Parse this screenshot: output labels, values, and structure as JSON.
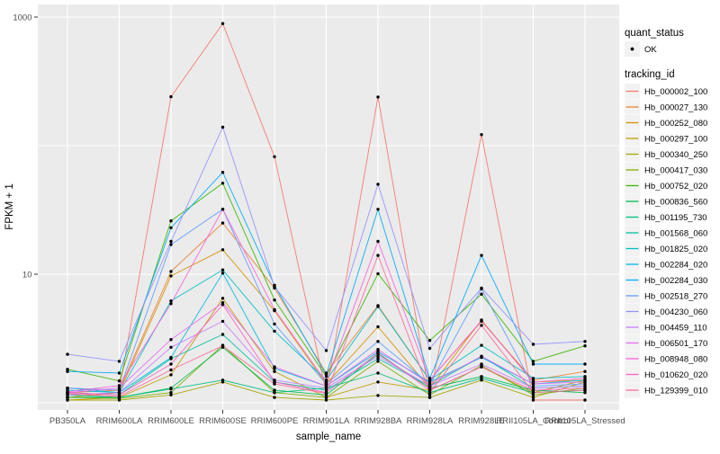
{
  "figure": {
    "panel_background": "#EBEBEB",
    "gridline_color": "#FFFFFF",
    "tick_text_color": "#4D4D4D",
    "point_color": "#000000",
    "legend_key_background": "#F2F2F2"
  },
  "chart_data": {
    "type": "line",
    "title": "",
    "xlabel": "sample_name",
    "ylabel": "FPKM + 1",
    "y_scale": "log10",
    "ylim_log10": [
      -0.05,
      3.1
    ],
    "grid": true,
    "legend_position": "right",
    "y_ticks": [
      {
        "value": 1000,
        "label": "1000"
      },
      {
        "value": 10,
        "label": "10"
      }
    ],
    "y_gridlines": [
      1,
      10,
      100,
      1000
    ],
    "categories": [
      "PB350LA",
      "RRIM600LA",
      "RRIM600LE",
      "RRIM600SE",
      "RRIM600PE",
      "RRIM901LA",
      "RRIM928BA",
      "RRIM928LA",
      "RRIM928LE",
      "RRII105LA_Control",
      "RRII105LA_Stressed"
    ],
    "series": [
      {
        "name": "Hb_000002_100",
        "color": "#F8766D",
        "values": [
          1.3,
          1.25,
          240,
          890,
          82,
          1.2,
          239,
          1.1,
          122,
          1.05,
          1.05
        ]
      },
      {
        "name": "Hb_000027_130",
        "color": "#EA8331",
        "values": [
          1.2,
          1.25,
          10.5,
          25,
          7.8,
          1.7,
          5.7,
          1.5,
          4.3,
          1.5,
          1.75
        ]
      },
      {
        "name": "Hb_000252_080",
        "color": "#D89000",
        "values": [
          1.1,
          1.2,
          9.7,
          15.5,
          5.2,
          1.4,
          3.9,
          1.3,
          4.4,
          1.45,
          1.5
        ]
      },
      {
        "name": "Hb_000297_100",
        "color": "#C09B00",
        "values": [
          1.05,
          1.1,
          1.65,
          6.5,
          1.75,
          1.1,
          1.45,
          1.25,
          1.9,
          1.2,
          1.5
        ]
      },
      {
        "name": "Hb_000340_250",
        "color": "#A3A500",
        "values": [
          1.05,
          1.05,
          1.15,
          1.45,
          1.1,
          1.05,
          1.14,
          1.1,
          1.5,
          1.1,
          1.45
        ]
      },
      {
        "name": "Hb_000417_030",
        "color": "#7CAE00",
        "values": [
          1.1,
          1.08,
          1.2,
          2.8,
          1.2,
          1.1,
          2.1,
          1.15,
          1.95,
          1.15,
          1.3
        ]
      },
      {
        "name": "Hb_000752_020",
        "color": "#39B600",
        "values": [
          1.82,
          1.48,
          26,
          51,
          6.3,
          1.6,
          10.1,
          3.05,
          7.0,
          2.1,
          2.77
        ]
      },
      {
        "name": "Hb_000836_560",
        "color": "#00BB4E",
        "values": [
          1.1,
          1.1,
          1.3,
          2.7,
          1.25,
          1.15,
          2.4,
          1.3,
          1.6,
          1.25,
          1.2
        ]
      },
      {
        "name": "Hb_001195_730",
        "color": "#00BF7D",
        "values": [
          1.15,
          1.1,
          1.28,
          1.5,
          1.2,
          1.3,
          1.7,
          1.2,
          1.55,
          1.2,
          1.25
        ]
      },
      {
        "name": "Hb_001568_060",
        "color": "#00C1A3",
        "values": [
          1.2,
          1.15,
          2.2,
          3.4,
          1.45,
          1.25,
          2.2,
          1.35,
          2.3,
          1.3,
          1.35
        ]
      },
      {
        "name": "Hb_001825_020",
        "color": "#00BFC4",
        "values": [
          1.3,
          1.2,
          6.2,
          10.8,
          3.6,
          1.5,
          5.6,
          1.5,
          2.8,
          1.55,
          1.6
        ]
      },
      {
        "name": "Hb_002284_020",
        "color": "#00B8E7",
        "values": [
          1.25,
          1.2,
          2.25,
          10.2,
          1.85,
          1.35,
          2.5,
          1.45,
          2.25,
          1.4,
          1.5
        ]
      },
      {
        "name": "Hb_002284_030",
        "color": "#00ACFC",
        "values": [
          1.75,
          1.7,
          23,
          62,
          8.2,
          1.65,
          32,
          1.55,
          14,
          2.0,
          2.0
        ]
      },
      {
        "name": "Hb_002518_270",
        "color": "#619CFF",
        "values": [
          1.3,
          1.25,
          17,
          32,
          4.1,
          1.4,
          3.0,
          1.4,
          7.7,
          1.35,
          1.4
        ]
      },
      {
        "name": "Hb_004230_060",
        "color": "#9590FF",
        "values": [
          2.38,
          2.1,
          18,
          139,
          8.0,
          2.55,
          50,
          2.65,
          7.8,
          2.85,
          3.0
        ]
      },
      {
        "name": "Hb_004459_110",
        "color": "#C77CFF",
        "values": [
          1.15,
          1.2,
          2.7,
          4.3,
          1.5,
          1.3,
          2.3,
          1.35,
          2.0,
          1.3,
          1.35
        ]
      },
      {
        "name": "Hb_006501_170",
        "color": "#E76BF3",
        "values": [
          1.2,
          1.3,
          3.1,
          6.0,
          1.9,
          1.35,
          2.6,
          1.4,
          2.3,
          1.4,
          1.45
        ]
      },
      {
        "name": "Hb_008948_080",
        "color": "#FA62DB",
        "values": [
          1.22,
          1.36,
          5.9,
          32,
          5.3,
          1.45,
          18,
          1.5,
          4.35,
          1.45,
          1.55
        ]
      },
      {
        "name": "Hb_010620_020",
        "color": "#FF61C3",
        "values": [
          1.2,
          1.15,
          2.0,
          5.8,
          1.45,
          1.2,
          2.45,
          1.25,
          1.9,
          1.25,
          1.3
        ]
      },
      {
        "name": "Hb_129399_010",
        "color": "#FF6A98",
        "values": [
          1.18,
          1.12,
          1.8,
          2.77,
          1.4,
          1.18,
          14,
          1.2,
          4.0,
          1.2,
          1.25
        ]
      }
    ],
    "legend": {
      "quant_status": {
        "title": "quant_status",
        "items": [
          {
            "label": "OK",
            "marker": "point",
            "color": "#000000"
          }
        ]
      },
      "tracking_id": {
        "title": "tracking_id"
      }
    }
  }
}
